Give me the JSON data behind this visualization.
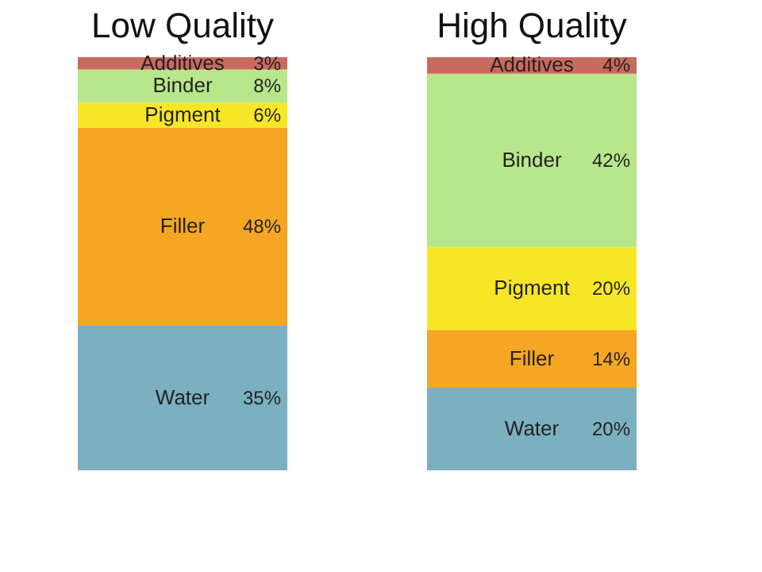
{
  "chart_data": {
    "type": "bar",
    "stacked": true,
    "categories": [
      "Low Quality",
      "High Quality"
    ],
    "series": [
      {
        "name": "Water",
        "color": "#7ab0c0",
        "values": [
          35,
          20
        ],
        "value_labels": [
          "35%",
          "20%"
        ]
      },
      {
        "name": "Filler",
        "color": "#f5a623",
        "values": [
          48,
          14
        ],
        "value_labels": [
          "48%",
          "14%"
        ]
      },
      {
        "name": "Pigment",
        "color": "#f7e625",
        "values": [
          6,
          20
        ],
        "value_labels": [
          "6%",
          "20%"
        ]
      },
      {
        "name": "Binder",
        "color": "#b8e68a",
        "values": [
          8,
          42
        ],
        "value_labels": [
          "8%",
          "42%"
        ]
      },
      {
        "name": "Additives",
        "color": "#c96a5e",
        "values": [
          3,
          4
        ],
        "value_labels": [
          "3%",
          "4%"
        ]
      }
    ]
  }
}
